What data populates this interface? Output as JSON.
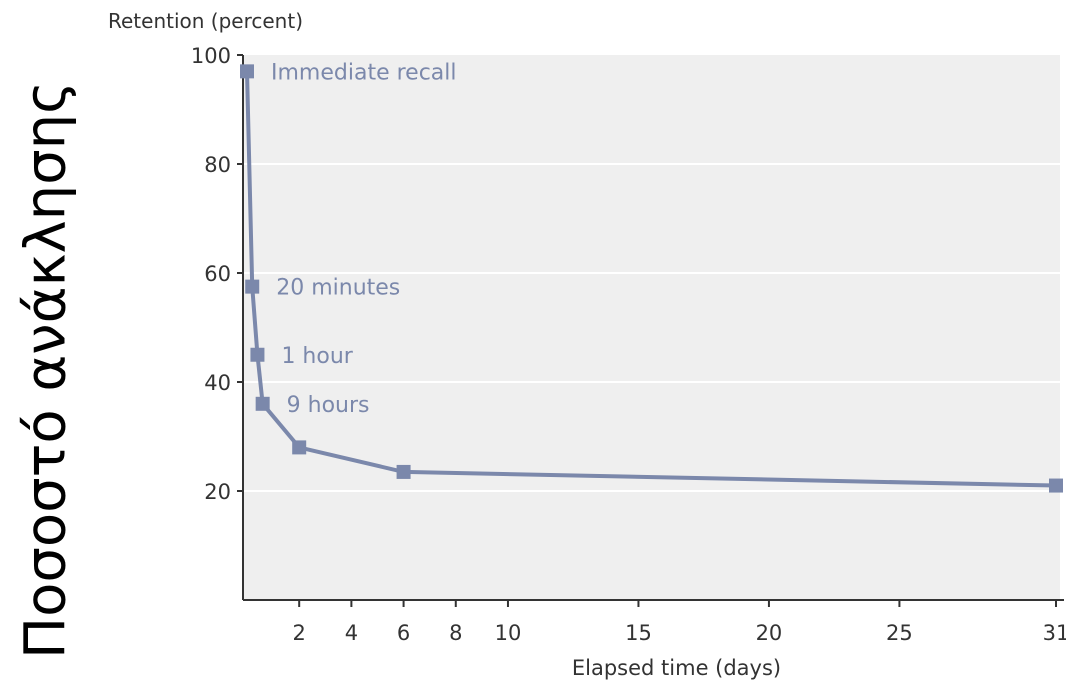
{
  "overlay": {
    "side_label": "Ποσοστό ανάκλησης"
  },
  "chart_data": {
    "type": "line",
    "title": "",
    "ylabel": "Retention (percent)",
    "xlabel": "Elapsed time (days)",
    "xlim": [
      0,
      31
    ],
    "ylim": [
      0,
      100
    ],
    "x_ticks": [
      2,
      4,
      6,
      8,
      10,
      15,
      20,
      25,
      31
    ],
    "y_ticks": [
      20,
      40,
      60,
      80,
      100
    ],
    "grid": "horizontal",
    "colors": {
      "series": "#7b88ab",
      "plot_bg": "#efefef",
      "grid": "#ffffff",
      "axis": "#333333",
      "label": "#7b88ab"
    },
    "series": [
      {
        "points": [
          {
            "x": 0,
            "y": 97,
            "label": "Immediate recall"
          },
          {
            "x": 0.2,
            "y": 57.5,
            "label": "20 minutes"
          },
          {
            "x": 0.4,
            "y": 45,
            "label": "1 hour"
          },
          {
            "x": 0.6,
            "y": 36,
            "label": "9 hours"
          },
          {
            "x": 2,
            "y": 28,
            "label": ""
          },
          {
            "x": 6,
            "y": 23.5,
            "label": ""
          },
          {
            "x": 31,
            "y": 21,
            "label": ""
          }
        ]
      }
    ]
  }
}
